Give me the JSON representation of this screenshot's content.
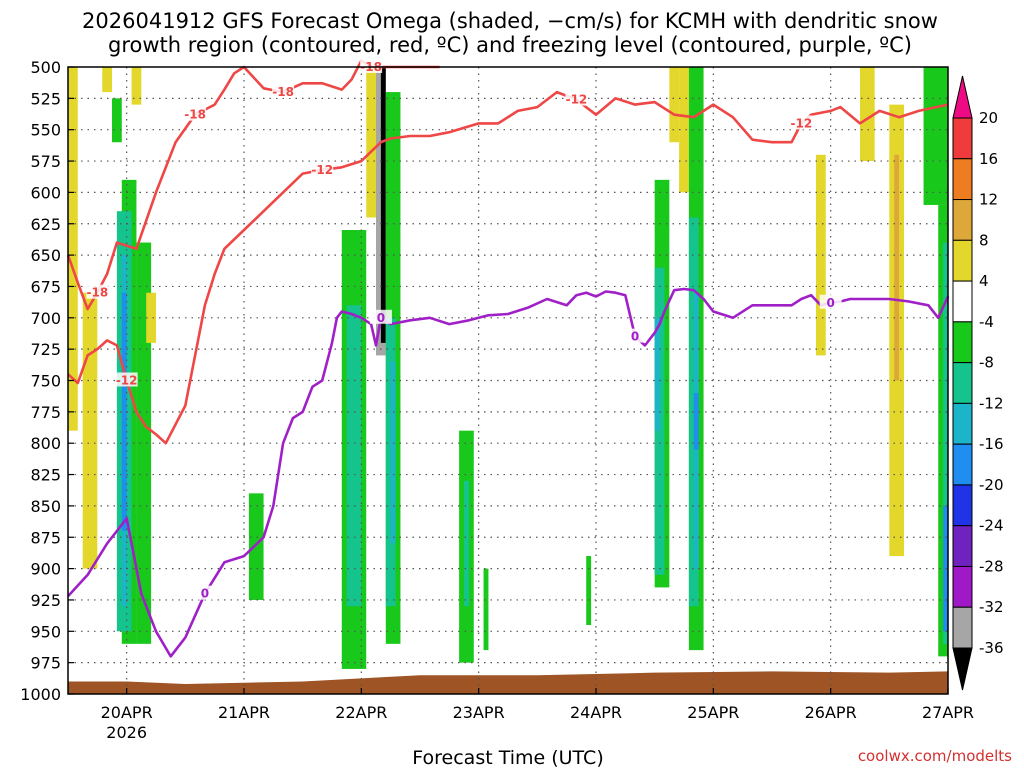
{
  "title": {
    "line1": "2026041912 GFS Forecast Omega (shaded, −cm/s) for KCMH with dendritic snow",
    "line2": "growth region (contoured, red, ºC) and freezing level (contoured, purple, ºC)"
  },
  "credit": "coolwx.com/modelts",
  "chart_data": {
    "type": "heatmap",
    "title": "2026041912 GFS Forecast Omega (shaded, −cm/s) for KCMH with dendritic snow growth region (contoured, red, ºC) and freezing level (contoured, purple, ºC)",
    "xlabel": "Forecast Time (UTC)",
    "ylabel": "",
    "x_range_hours": [
      0,
      180
    ],
    "ylim": [
      1000,
      500
    ],
    "grid": true,
    "x_ticks": [
      {
        "hour": 12,
        "label": "20APR",
        "sublabel": "2026"
      },
      {
        "hour": 36,
        "label": "21APR"
      },
      {
        "hour": 60,
        "label": "22APR"
      },
      {
        "hour": 84,
        "label": "23APR"
      },
      {
        "hour": 108,
        "label": "24APR"
      },
      {
        "hour": 132,
        "label": "25APR"
      },
      {
        "hour": 156,
        "label": "26APR"
      },
      {
        "hour": 180,
        "label": "27APR"
      }
    ],
    "y_ticks": [
      500,
      525,
      550,
      575,
      600,
      625,
      650,
      675,
      700,
      725,
      750,
      775,
      800,
      825,
      850,
      875,
      900,
      925,
      950,
      975,
      1000
    ],
    "colorbar": {
      "labels": [
        "20",
        "16",
        "12",
        "8",
        "4",
        "-4",
        "-8",
        "-12",
        "-16",
        "-20",
        "-24",
        "-28",
        "-32",
        "-36"
      ],
      "bins": [
        {
          "range": "> 20",
          "color": "#ee0a82"
        },
        {
          "range": "16 to 20",
          "color": "#ef3b3b"
        },
        {
          "range": "12 to 16",
          "color": "#ee7d22"
        },
        {
          "range": "8 to 12",
          "color": "#dda73a"
        },
        {
          "range": "4 to 8",
          "color": "#e4d72c"
        },
        {
          "range": "-4 to 4",
          "color": "#ffffff"
        },
        {
          "range": "-8 to -4",
          "color": "#18c81a"
        },
        {
          "range": "-12 to -8",
          "color": "#14c48c"
        },
        {
          "range": "-16 to -12",
          "color": "#1cb4c8"
        },
        {
          "range": "-20 to -16",
          "color": "#1f8ef0"
        },
        {
          "range": "-24 to -20",
          "color": "#2033e6"
        },
        {
          "range": "-28 to -24",
          "color": "#7022c0"
        },
        {
          "range": "-32 to -28",
          "color": "#a019c8"
        },
        {
          "range": "-36 to -32",
          "color": "#a6a6a6"
        },
        {
          "range": "< -36",
          "color": "#000000"
        }
      ]
    },
    "series": [
      {
        "name": "Freezing level (0 ºC)",
        "color": "#a020c8",
        "label": "0",
        "x": [
          0,
          4,
          8,
          12,
          15,
          18,
          21,
          24,
          28,
          32,
          36,
          40,
          42,
          44,
          46,
          48,
          50,
          52,
          54,
          55,
          56,
          58,
          60,
          62,
          63,
          64,
          66,
          70,
          74,
          78,
          82,
          86,
          90,
          94,
          98,
          102,
          104,
          106,
          108,
          110,
          112,
          114,
          116,
          118,
          120,
          121,
          122,
          124,
          126,
          128,
          130,
          132,
          136,
          140,
          144,
          148,
          150,
          152,
          154,
          156,
          158,
          160,
          164,
          168,
          172,
          176,
          178,
          180
        ],
        "y": [
          922,
          905,
          880,
          860,
          920,
          950,
          970,
          955,
          920,
          895,
          890,
          875,
          850,
          800,
          780,
          775,
          755,
          750,
          720,
          700,
          695,
          697,
          700,
          705,
          722,
          700,
          705,
          702,
          700,
          705,
          702,
          698,
          697,
          692,
          685,
          690,
          682,
          680,
          683,
          679,
          680,
          682,
          715,
          722,
          712,
          705,
          695,
          678,
          677,
          678,
          685,
          695,
          700,
          690,
          690,
          690,
          685,
          682,
          690,
          688,
          687,
          685,
          685,
          685,
          687,
          690,
          700,
          683
        ]
      },
      {
        "name": "-12 ºC isotherm",
        "color": "#ef4646",
        "label": "-12",
        "x": [
          0,
          2,
          4,
          6,
          8,
          10,
          12,
          14,
          16,
          18,
          20,
          24,
          28,
          30,
          32,
          36,
          40,
          44,
          48,
          52,
          56,
          60,
          64,
          66,
          70,
          74,
          78,
          84,
          88,
          92,
          96,
          100,
          104,
          108,
          112,
          116,
          120,
          124,
          128,
          130,
          132,
          136,
          140,
          144,
          148,
          150,
          152,
          156,
          158,
          162,
          166,
          170,
          174,
          180
        ],
        "y": [
          745,
          752,
          730,
          725,
          718,
          722,
          750,
          775,
          787,
          793,
          800,
          770,
          690,
          665,
          645,
          630,
          615,
          600,
          585,
          582,
          580,
          575,
          560,
          557,
          555,
          555,
          552,
          545,
          545,
          535,
          532,
          520,
          526,
          538,
          525,
          530,
          528,
          538,
          540,
          535,
          530,
          540,
          558,
          560,
          560,
          545,
          538,
          535,
          532,
          545,
          535,
          540,
          535,
          530
        ]
      },
      {
        "name": "-18 ºC isotherm",
        "color": "#ef4646",
        "label": "-18",
        "x": [
          0,
          2,
          4,
          6,
          8,
          10,
          14,
          18,
          22,
          26,
          30,
          32,
          34,
          36,
          40,
          44,
          48,
          52,
          56,
          58,
          60,
          62,
          64,
          66,
          70,
          74,
          76
        ],
        "y": [
          650,
          672,
          693,
          680,
          665,
          640,
          645,
          600,
          560,
          538,
          530,
          518,
          505,
          500,
          517,
          520,
          513,
          513,
          518,
          510,
          495,
          500,
          500,
          500,
          500,
          500,
          500
        ]
      }
    ],
    "shaded_regions": [
      {
        "category": "4 to 8",
        "x": [
          0,
          2
        ],
        "y": [
          500,
          790
        ]
      },
      {
        "category": "4 to 8",
        "x": [
          3,
          6
        ],
        "y": [
          680,
          900
        ]
      },
      {
        "category": "4 to 8",
        "x": [
          7,
          9
        ],
        "y": [
          500,
          520
        ]
      },
      {
        "category": "-8 to -4",
        "x": [
          9,
          11
        ],
        "y": [
          525,
          560
        ]
      },
      {
        "category": "4 to 8",
        "x": [
          13,
          15
        ],
        "y": [
          500,
          530
        ]
      },
      {
        "category": "-8 to -4",
        "x": [
          11,
          14
        ],
        "y": [
          590,
          960
        ]
      },
      {
        "category": "-12 to -8",
        "x": [
          10,
          13
        ],
        "y": [
          615,
          950
        ]
      },
      {
        "category": "-16 to -12",
        "x": [
          11,
          12
        ],
        "y": [
          650,
          930
        ]
      },
      {
        "category": "-20 to -16",
        "x": [
          11,
          12
        ],
        "y": [
          680,
          870
        ]
      },
      {
        "category": "-8 to -4",
        "x": [
          14,
          17
        ],
        "y": [
          640,
          960
        ]
      },
      {
        "category": "4 to 8",
        "x": [
          16,
          18
        ],
        "y": [
          680,
          720
        ]
      },
      {
        "category": "-8 to -4",
        "x": [
          37,
          40
        ],
        "y": [
          840,
          925
        ]
      },
      {
        "category": "-8 to -4",
        "x": [
          56,
          61
        ],
        "y": [
          630,
          980
        ]
      },
      {
        "category": "-12 to -8",
        "x": [
          57,
          60
        ],
        "y": [
          690,
          930
        ]
      },
      {
        "category": "4 to 8",
        "x": [
          61,
          63
        ],
        "y": [
          500,
          620
        ]
      },
      {
        "category": "-36 to -32",
        "x": [
          63,
          65
        ],
        "y": [
          500,
          730
        ]
      },
      {
        "category": "< -36",
        "x": [
          64,
          65
        ],
        "y": [
          500,
          720
        ]
      },
      {
        "category": "-8 to -4",
        "x": [
          65,
          68
        ],
        "y": [
          520,
          960
        ]
      },
      {
        "category": "-12 to -8",
        "x": [
          65,
          67
        ],
        "y": [
          700,
          930
        ]
      },
      {
        "category": "-16 to -12",
        "x": [
          66,
          67
        ],
        "y": [
          735,
          880
        ]
      },
      {
        "category": "-8 to -4",
        "x": [
          80,
          83
        ],
        "y": [
          790,
          975
        ]
      },
      {
        "category": "-12 to -8",
        "x": [
          81,
          82
        ],
        "y": [
          830,
          930
        ]
      },
      {
        "category": "-8 to -4",
        "x": [
          85,
          86
        ],
        "y": [
          900,
          965
        ]
      },
      {
        "category": "-8 to -4",
        "x": [
          106,
          107
        ],
        "y": [
          890,
          945
        ]
      },
      {
        "category": "4 to 8",
        "x": [
          123,
          125
        ],
        "y": [
          500,
          560
        ]
      },
      {
        "category": "-8 to -4",
        "x": [
          120,
          123
        ],
        "y": [
          590,
          915
        ]
      },
      {
        "category": "-12 to -8",
        "x": [
          120,
          122
        ],
        "y": [
          660,
          905
        ]
      },
      {
        "category": "-16 to -12",
        "x": [
          120,
          121
        ],
        "y": [
          700,
          790
        ]
      },
      {
        "category": "4 to 8",
        "x": [
          125,
          127
        ],
        "y": [
          500,
          600
        ]
      },
      {
        "category": "-8 to -4",
        "x": [
          127,
          130
        ],
        "y": [
          500,
          965
        ]
      },
      {
        "category": "-12 to -8",
        "x": [
          127,
          129
        ],
        "y": [
          620,
          930
        ]
      },
      {
        "category": "-16 to -12",
        "x": [
          128,
          129
        ],
        "y": [
          680,
          900
        ]
      },
      {
        "category": "-20 to -16",
        "x": [
          128,
          129
        ],
        "y": [
          760,
          805
        ]
      },
      {
        "category": "4 to 8",
        "x": [
          153,
          155
        ],
        "y": [
          570,
          730
        ]
      },
      {
        "category": "4 to 8",
        "x": [
          162,
          165
        ],
        "y": [
          500,
          575
        ]
      },
      {
        "category": "4 to 8",
        "x": [
          168,
          171
        ],
        "y": [
          530,
          890
        ]
      },
      {
        "category": "8 to 12",
        "x": [
          169,
          170
        ],
        "y": [
          570,
          750
        ]
      },
      {
        "category": "-8 to -4",
        "x": [
          175,
          180
        ],
        "y": [
          500,
          610
        ]
      },
      {
        "category": "-8 to -4",
        "x": [
          178,
          180
        ],
        "y": [
          610,
          970
        ]
      },
      {
        "category": "-12 to -8",
        "x": [
          179,
          180
        ],
        "y": [
          640,
          960
        ]
      },
      {
        "category": "-20 to -16",
        "x": [
          179,
          180
        ],
        "y": [
          850,
          950
        ]
      }
    ],
    "terrain": {
      "label": "surface",
      "color": "#9e5425",
      "x": [
        0,
        12,
        24,
        48,
        72,
        96,
        120,
        144,
        168,
        180
      ],
      "y": [
        990,
        990,
        992,
        990,
        985,
        985,
        983,
        982,
        983,
        982
      ]
    }
  }
}
